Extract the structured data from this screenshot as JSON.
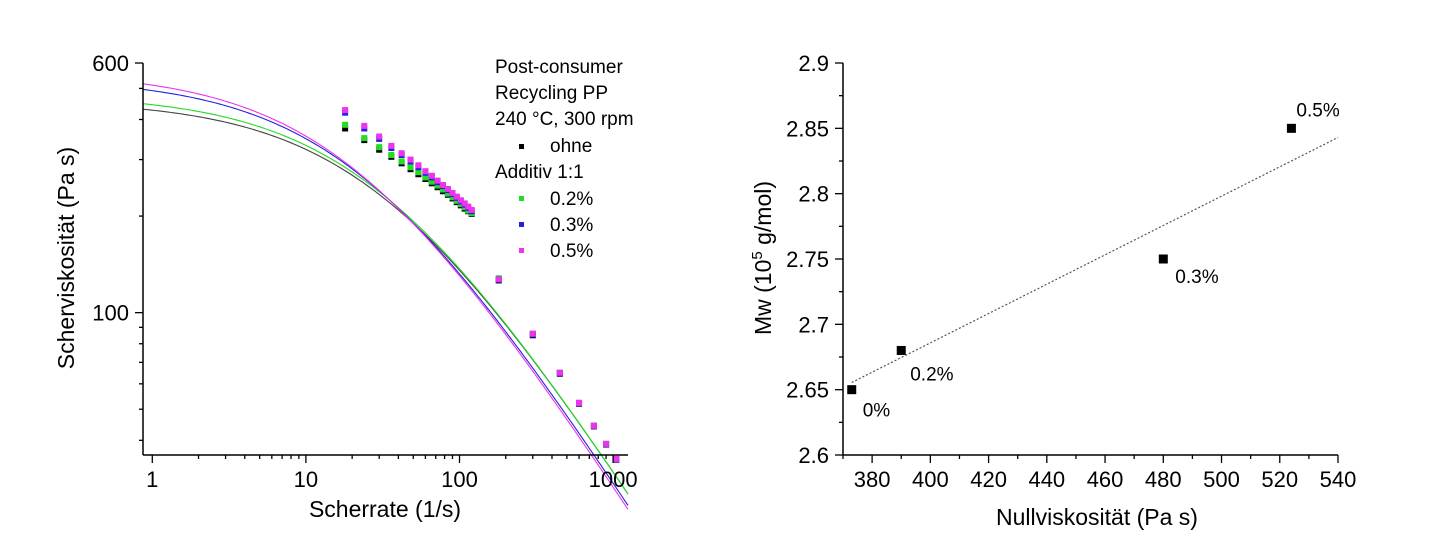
{
  "chart_data": [
    {
      "type": "scatter",
      "xlabel": "Scherrate (1/s)",
      "ylabel": "Scherviskosität (Pa s)",
      "xscale": "log",
      "yscale": "log",
      "xlim": [
        0.87,
        1250
      ],
      "ylim": [
        36,
        600
      ],
      "xticks": [
        1,
        10,
        100,
        1000
      ],
      "xtick_labels": [
        "1",
        "10",
        "100",
        "1000"
      ],
      "yticks": [
        100,
        600
      ],
      "ytick_labels": [
        "100",
        "600"
      ],
      "grid": false,
      "legend": {
        "position": "top-right",
        "header": [
          "Post-consumer",
          "Recycling PP",
          "240 °C, 300 rpm"
        ],
        "group_title": "Additiv 1:1",
        "entries": [
          {
            "label": "ohne",
            "color": "#000000"
          },
          {
            "label": "0.2%",
            "color": "#22dd22"
          },
          {
            "label": "0.3%",
            "color": "#2222dd"
          },
          {
            "label": "0.5%",
            "color": "#ee33ee"
          }
        ]
      },
      "series": [
        {
          "name": "ohne",
          "color": "#000000",
          "x": [
            18,
            24,
            30,
            36,
            42,
            48,
            54,
            60,
            66,
            72,
            78,
            84,
            90,
            96,
            102,
            108,
            114,
            120,
            180,
            300,
            450,
            600,
            750,
            900,
            1050
          ],
          "y": [
            375,
            345,
            322,
            306,
            292,
            280,
            270,
            261,
            253,
            246,
            239,
            233,
            227,
            221,
            216,
            211,
            207,
            203,
            126,
            85,
            64.5,
            52,
            44.2,
            38.8,
            34.8
          ]
        },
        {
          "name": "0.2%",
          "color": "#22dd22",
          "x": [
            18,
            24,
            30,
            36,
            42,
            48,
            54,
            60,
            66,
            72,
            78,
            84,
            90,
            96,
            102,
            108,
            114,
            120,
            180,
            300,
            450,
            600,
            750,
            900,
            1050
          ],
          "y": [
            385,
            350,
            328,
            310,
            296,
            284,
            274,
            264,
            256,
            249,
            242,
            235,
            229,
            223,
            218,
            213,
            208,
            204,
            128,
            86,
            65,
            52.4,
            44.5,
            39,
            35
          ]
        },
        {
          "name": "0.3%",
          "color": "#2222dd",
          "x": [
            18,
            24,
            30,
            36,
            42,
            48,
            54,
            60,
            66,
            72,
            78,
            84,
            90,
            96,
            102,
            108,
            114,
            120,
            180,
            300,
            450,
            600,
            750,
            900,
            1050
          ],
          "y": [
            420,
            375,
            348,
            326,
            310,
            296,
            284,
            273,
            264,
            255,
            248,
            241,
            234,
            228,
            222,
            217,
            212,
            207,
            127,
            85.5,
            64.8,
            52.2,
            44.3,
            38.9,
            34.9
          ]
        },
        {
          "name": "0.5%",
          "color": "#ee33ee",
          "x": [
            18,
            24,
            30,
            36,
            42,
            48,
            54,
            60,
            66,
            72,
            78,
            84,
            90,
            96,
            102,
            108,
            114,
            120,
            180,
            300,
            450,
            600,
            750,
            900,
            1050
          ],
          "y": [
            428,
            382,
            354,
            331,
            314,
            300,
            288,
            276,
            267,
            258,
            250,
            243,
            236,
            230,
            224,
            219,
            214,
            209,
            127,
            86,
            65,
            52.3,
            44.4,
            39,
            35
          ]
        }
      ],
      "fit_curves": [
        {
          "series": "ohne",
          "eta0": 460,
          "lambda": 0.032,
          "n": 0.25,
          "color": "#444444"
        },
        {
          "series": "0.2%",
          "eta0": 480,
          "lambda": 0.034,
          "n": 0.25,
          "color": "#22dd22"
        },
        {
          "series": "0.3%",
          "eta0": 540,
          "lambda": 0.045,
          "n": 0.25,
          "color": "#2222dd"
        },
        {
          "series": "0.5%",
          "eta0": 566,
          "lambda": 0.05,
          "n": 0.25,
          "color": "#ee33ee"
        }
      ]
    },
    {
      "type": "scatter",
      "xlabel": "Nullviskosität (Pa s)",
      "ylabel_parts": [
        "Mw (10",
        "5",
        " g/mol)"
      ],
      "xlim": [
        370,
        540
      ],
      "ylim": [
        2.6,
        2.9
      ],
      "xticks": [
        380,
        400,
        420,
        440,
        460,
        480,
        500,
        520,
        540
      ],
      "yticks": [
        2.6,
        2.65,
        2.7,
        2.75,
        2.8,
        2.85,
        2.9
      ],
      "ytick_labels": [
        "2.6",
        "2.65",
        "2.7",
        "2.75",
        "2.8",
        "2.85",
        "2.9"
      ],
      "grid": false,
      "points": [
        {
          "x": 373,
          "y": 2.65,
          "label": "0%"
        },
        {
          "x": 390,
          "y": 2.68,
          "label": "0.2%"
        },
        {
          "x": 480,
          "y": 2.75,
          "label": "0.3%"
        },
        {
          "x": 524,
          "y": 2.85,
          "label": "0.5%"
        }
      ],
      "trendline": {
        "style": "dotted",
        "x": [
          373,
          540
        ],
        "y": [
          2.6555,
          2.843
        ]
      }
    }
  ]
}
